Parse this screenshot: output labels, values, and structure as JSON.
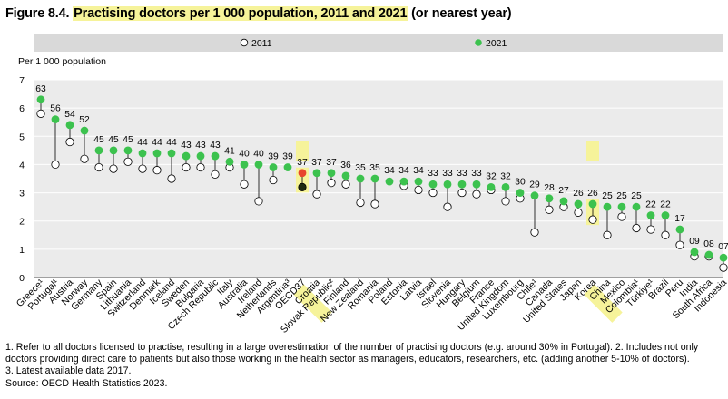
{
  "figure": {
    "number": "Figure 8.4.",
    "title": "Practising doctors per 1 000 population, 2011 and 2021",
    "title_suffix": "(or nearest year)"
  },
  "colors": {
    "series_2021": "#3cc24e",
    "series_2011_fill": "#ffffff",
    "oecd_2021": "#e8442d",
    "oecd_2011": "#1f2a10",
    "highlight": "#f6f39a",
    "plot_bg": "#ebebeb",
    "legend_bg": "#d9d9d9"
  },
  "chart_data": {
    "type": "dot-plot",
    "ylabel": "Per 1 000 population",
    "ylim": [
      0,
      7
    ],
    "yticks": [
      0,
      1,
      2,
      3,
      4,
      5,
      6,
      7
    ],
    "grid": true,
    "legend_position": "top",
    "series": [
      {
        "name": "2011",
        "key": "y2011"
      },
      {
        "name": "2021",
        "key": "y2021"
      }
    ],
    "highlighted": [
      "OECD37",
      "Korea"
    ],
    "points": [
      {
        "country": "Greece¹",
        "label": "63",
        "y2021": 6.3,
        "y2011": 5.8
      },
      {
        "country": "Portugal¹",
        "label": "56",
        "y2021": 5.6,
        "y2011": 4.0
      },
      {
        "country": "Austria",
        "label": "54",
        "y2021": 5.4,
        "y2011": 4.8
      },
      {
        "country": "Norway",
        "label": "52",
        "y2021": 5.2,
        "y2011": 4.2
      },
      {
        "country": "Germany",
        "label": "45",
        "y2021": 4.5,
        "y2011": 3.9
      },
      {
        "country": "Spain",
        "label": "45",
        "y2021": 4.5,
        "y2011": 3.85
      },
      {
        "country": "Lithuania",
        "label": "45",
        "y2021": 4.5,
        "y2011": 4.1
      },
      {
        "country": "Switzerland",
        "label": "44",
        "y2021": 4.4,
        "y2011": 3.85
      },
      {
        "country": "Denmark",
        "label": "44",
        "y2021": 4.4,
        "y2011": 3.8
      },
      {
        "country": "Iceland",
        "label": "44",
        "y2021": 4.4,
        "y2011": 3.5
      },
      {
        "country": "Sweden",
        "label": "43",
        "y2021": 4.3,
        "y2011": 3.9
      },
      {
        "country": "Bulgaria",
        "label": "43",
        "y2021": 4.3,
        "y2011": 3.9
      },
      {
        "country": "Czech Republic",
        "label": "43",
        "y2021": 4.3,
        "y2011": 3.65
      },
      {
        "country": "Italy",
        "label": "41",
        "y2021": 4.1,
        "y2011": 3.9
      },
      {
        "country": "Australia",
        "label": "40",
        "y2021": 4.0,
        "y2011": 3.3
      },
      {
        "country": "Ireland",
        "label": "40",
        "y2021": 4.0,
        "y2011": 2.7
      },
      {
        "country": "Netherlands",
        "label": "39",
        "y2021": 3.9,
        "y2011": 3.45
      },
      {
        "country": "Argentina³",
        "label": "39",
        "y2021": 3.9,
        "y2011": null
      },
      {
        "country": "OECD37",
        "label": "37",
        "y2021": 3.7,
        "y2011": 3.2
      },
      {
        "country": "Croatia",
        "label": "37",
        "y2021": 3.7,
        "y2011": 2.95
      },
      {
        "country": "Slovak Republic²",
        "label": "37",
        "y2021": 3.7,
        "y2011": 3.35
      },
      {
        "country": "Finland",
        "label": "36",
        "y2021": 3.6,
        "y2011": 3.3
      },
      {
        "country": "New Zealand",
        "label": "35",
        "y2021": 3.5,
        "y2011": 2.65
      },
      {
        "country": "Romania",
        "label": "35",
        "y2021": 3.5,
        "y2011": 2.6
      },
      {
        "country": "Poland",
        "label": "34",
        "y2021": 3.4,
        "y2011": null
      },
      {
        "country": "Estonia",
        "label": "34",
        "y2021": 3.4,
        "y2011": 3.25
      },
      {
        "country": "Latvia",
        "label": "34",
        "y2021": 3.4,
        "y2011": 3.1
      },
      {
        "country": "Israel",
        "label": "33",
        "y2021": 3.3,
        "y2011": 3.0
      },
      {
        "country": "Slovenia",
        "label": "33",
        "y2021": 3.3,
        "y2011": 2.5
      },
      {
        "country": "Hungary",
        "label": "33",
        "y2021": 3.3,
        "y2011": 3.0
      },
      {
        "country": "Belgium",
        "label": "33",
        "y2021": 3.3,
        "y2011": 2.95
      },
      {
        "country": "France",
        "label": "32",
        "y2021": 3.2,
        "y2011": 3.1
      },
      {
        "country": "United Kingdom",
        "label": "32",
        "y2021": 3.2,
        "y2011": 2.7
      },
      {
        "country": "Luxembourg",
        "label": "30",
        "y2021": 3.0,
        "y2011": 2.8
      },
      {
        "country": "Chile¹",
        "label": "29",
        "y2021": 2.9,
        "y2011": 1.6
      },
      {
        "country": "Canada",
        "label": "28",
        "y2021": 2.8,
        "y2011": 2.4
      },
      {
        "country": "United States",
        "label": "27",
        "y2021": 2.7,
        "y2011": 2.5
      },
      {
        "country": "Japan",
        "label": "26",
        "y2021": 2.6,
        "y2011": 2.3
      },
      {
        "country": "Korea",
        "label": "26",
        "y2021": 2.6,
        "y2011": 2.05
      },
      {
        "country": "China",
        "label": "25",
        "y2021": 2.5,
        "y2011": 1.5
      },
      {
        "country": "Mexico",
        "label": "25",
        "y2021": 2.5,
        "y2011": 2.15
      },
      {
        "country": "Colombia¹",
        "label": "25",
        "y2021": 2.5,
        "y2011": 1.75
      },
      {
        "country": "Türkiye¹",
        "label": "22",
        "y2021": 2.2,
        "y2011": 1.7
      },
      {
        "country": "Brazil",
        "label": "22",
        "y2021": 2.2,
        "y2011": 1.5
      },
      {
        "country": "Peru",
        "label": "17",
        "y2021": 1.7,
        "y2011": 1.15
      },
      {
        "country": "India",
        "label": "09",
        "y2021": 0.9,
        "y2011": 0.75
      },
      {
        "country": "South Africa",
        "label": "08",
        "y2021": 0.8,
        "y2011": 0.75
      },
      {
        "country": "Indonesia",
        "label": "07",
        "y2021": 0.7,
        "y2011": 0.35
      }
    ]
  },
  "notes": [
    "1. Refer to all doctors licensed to practise, resulting in a large overestimation of the number of practising doctors (e.g. around 30% in Portugal). 2. Includes not only",
    "doctors providing direct care to patients but also those working in the health sector as managers, educators, researchers, etc. (adding another 5-10% of doctors).",
    "3. Latest available data 2017.",
    "Source: OECD Health Statistics 2023."
  ]
}
